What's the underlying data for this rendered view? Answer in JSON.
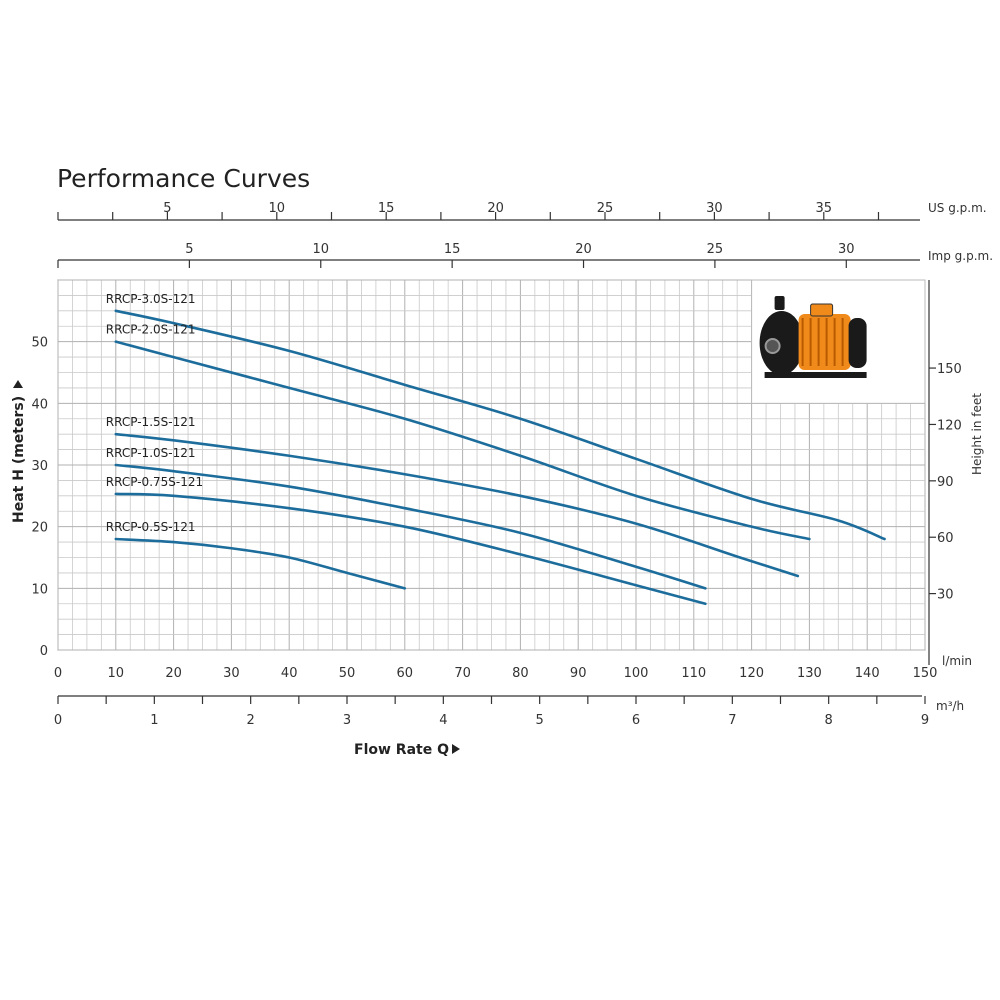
{
  "chart_data": {
    "type": "line",
    "title": "Performance Curves",
    "xlabel": "Flow Rate Q",
    "ylabel": "Heat H (meters)",
    "y2label": "Height in feet",
    "xlim": [
      0,
      150
    ],
    "ylim": [
      0,
      60
    ],
    "grid": true,
    "x_unit": "l/min",
    "x_ticks": [
      0,
      10,
      20,
      30,
      40,
      50,
      60,
      70,
      80,
      90,
      100,
      110,
      120,
      130,
      140,
      150
    ],
    "y_ticks": [
      0,
      10,
      20,
      30,
      40,
      50
    ],
    "y2_ticks": [
      30,
      60,
      90,
      120,
      150
    ],
    "us_gpm_label": "US g.p.m.",
    "us_gpm_ticks": [
      5,
      10,
      15,
      20,
      25,
      30,
      35
    ],
    "imp_gpm_label": "Imp g.p.m.",
    "imp_gpm_ticks": [
      5,
      10,
      15,
      20,
      25,
      30
    ],
    "m3h_label": "m³/h",
    "m3h_ticks": [
      0,
      1,
      2,
      3,
      4,
      5,
      6,
      7,
      8,
      9
    ],
    "series": [
      {
        "name": "RRCP-3.0S-121",
        "x": [
          10,
          20,
          40,
          60,
          80,
          100,
          120,
          135,
          143
        ],
        "y": [
          55,
          53,
          48.5,
          43,
          37.5,
          31,
          24.5,
          21,
          18
        ]
      },
      {
        "name": "RRCP-2.0S-121",
        "x": [
          10,
          20,
          40,
          60,
          80,
          100,
          120,
          130
        ],
        "y": [
          50,
          47.5,
          42.5,
          37.5,
          31.5,
          25,
          20,
          18
        ]
      },
      {
        "name": "RRCP-1.5S-121",
        "x": [
          10,
          20,
          40,
          60,
          80,
          100,
          118,
          128
        ],
        "y": [
          35,
          34,
          31.5,
          28.5,
          25,
          20.5,
          15,
          12
        ]
      },
      {
        "name": "RRCP-1.0S-121",
        "x": [
          10,
          20,
          40,
          60,
          80,
          100,
          112
        ],
        "y": [
          30,
          29,
          26.5,
          23,
          19,
          13.5,
          10
        ]
      },
      {
        "name": "RRCP-0.75S-121",
        "x": [
          10,
          20,
          40,
          60,
          80,
          100,
          112
        ],
        "y": [
          25.3,
          25,
          23,
          20,
          15.5,
          10.5,
          7.5
        ]
      },
      {
        "name": "RRCP-0.5S-121",
        "x": [
          10,
          20,
          30,
          40,
          50,
          60
        ],
        "y": [
          18,
          17.5,
          16.5,
          15,
          12.5,
          10
        ]
      }
    ]
  },
  "colors": {
    "curve": "#1d6d9c",
    "grid": "#c9c9c9",
    "pump_body": "#f08a1a",
    "pump_dark": "#1a1a1a"
  },
  "inset": {
    "icon": "pump-photo-icon"
  }
}
